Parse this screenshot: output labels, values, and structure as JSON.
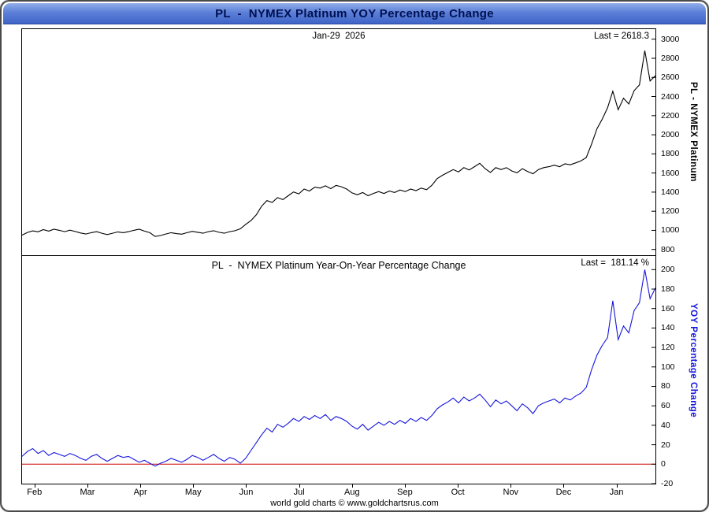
{
  "window": {
    "title": "PL  -  NYMEX Platinum YOY Percentage Change",
    "footer": "world gold charts © www.goldchartsrus.com"
  },
  "chart_data": [
    {
      "type": "line",
      "series_name": "PL NYMEX Platinum price",
      "date_label": "Jan-29  2026",
      "last_label": "Last = 2618.3",
      "last_value": 2618.3,
      "right_axis_title": "PL  -  NYMEX Platinum",
      "line_color": "#000000",
      "ylim": [
        740,
        3105
      ],
      "yticks": [
        3000,
        2800,
        2600,
        2400,
        2200,
        2000,
        1800,
        1600,
        1400,
        1200,
        1000,
        800
      ],
      "x_months": [
        "Feb",
        "Mar",
        "Apr",
        "May",
        "Jun",
        "Jul",
        "Aug",
        "Sep",
        "Oct",
        "Nov",
        "Dec",
        "Jan"
      ],
      "values": [
        950,
        978,
        995,
        985,
        1008,
        992,
        1012,
        1000,
        986,
        1002,
        988,
        972,
        962,
        976,
        986,
        970,
        956,
        970,
        984,
        976,
        986,
        1000,
        1012,
        992,
        976,
        936,
        946,
        962,
        976,
        966,
        960,
        976,
        990,
        980,
        970,
        986,
        996,
        980,
        970,
        986,
        996,
        1016,
        1062,
        1102,
        1162,
        1252,
        1312,
        1292,
        1342,
        1322,
        1362,
        1402,
        1382,
        1432,
        1412,
        1452,
        1442,
        1466,
        1436,
        1470,
        1456,
        1432,
        1392,
        1372,
        1396,
        1362,
        1386,
        1406,
        1386,
        1412,
        1396,
        1422,
        1406,
        1432,
        1416,
        1442,
        1426,
        1472,
        1542,
        1576,
        1606,
        1636,
        1612,
        1656,
        1632,
        1666,
        1702,
        1646,
        1606,
        1656,
        1636,
        1656,
        1622,
        1602,
        1646,
        1616,
        1592,
        1636,
        1656,
        1666,
        1682,
        1666,
        1696,
        1686,
        1706,
        1726,
        1762,
        1902,
        2062,
        2162,
        2282,
        2455,
        2262,
        2382,
        2322,
        2462,
        2522,
        2880,
        2562,
        2618.3
      ]
    },
    {
      "type": "line",
      "series_name": "YOY percentage change",
      "panel_title": "PL  -  NYMEX Platinum Year-On-Year Percentage Change",
      "last_label": "Last =  181.14 %",
      "last_value": 181.14,
      "right_axis_title": "YOY Percentage Change",
      "right_axis_title_color": "#1515dd",
      "line_color": "#1515dd",
      "zero_line_value": 0,
      "zero_line_color": "#cc0000",
      "ylim": [
        -20,
        214
      ],
      "yticks": [
        200,
        180,
        160,
        140,
        120,
        100,
        80,
        60,
        40,
        20,
        0,
        -20
      ],
      "x_months": [
        "Feb",
        "Mar",
        "Apr",
        "May",
        "Jun",
        "Jul",
        "Aug",
        "Sep",
        "Oct",
        "Nov",
        "Dec",
        "Jan"
      ],
      "values": [
        8,
        13,
        16,
        11,
        14,
        9,
        12,
        10,
        8,
        11,
        9,
        6,
        4,
        8,
        10,
        6,
        3,
        6,
        9,
        7,
        8,
        5,
        2,
        4,
        1,
        -2,
        1,
        3,
        6,
        4,
        2,
        5,
        9,
        7,
        4,
        7,
        10,
        6,
        3,
        7,
        5,
        1,
        6,
        14,
        22,
        30,
        37,
        33,
        41,
        38,
        42,
        47,
        44,
        49,
        46,
        50,
        47,
        51,
        45,
        49,
        47,
        44,
        39,
        36,
        41,
        35,
        39,
        43,
        40,
        44,
        41,
        45,
        42,
        47,
        44,
        48,
        45,
        50,
        57,
        61,
        64,
        68,
        63,
        69,
        65,
        68,
        72,
        66,
        59,
        66,
        62,
        65,
        60,
        55,
        62,
        58,
        52,
        60,
        63,
        65,
        67,
        63,
        68,
        66,
        70,
        73,
        79,
        97,
        112,
        122,
        130,
        168,
        128,
        142,
        135,
        158,
        166,
        200,
        170,
        181.14
      ]
    }
  ]
}
